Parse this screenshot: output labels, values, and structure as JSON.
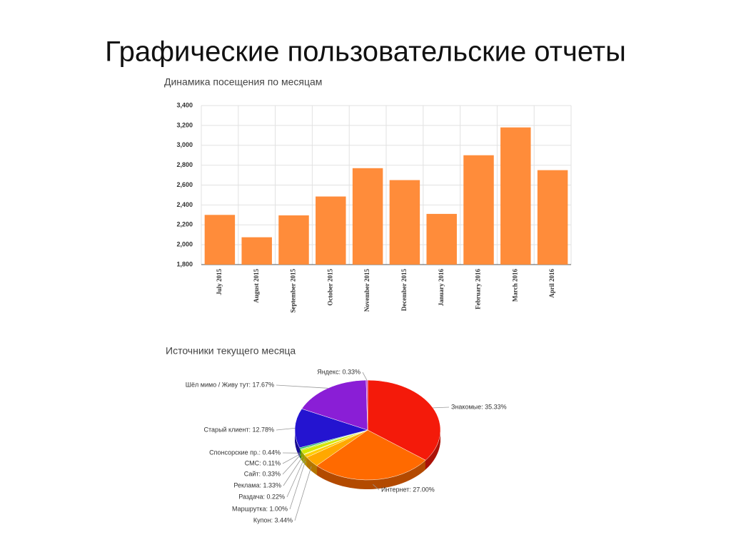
{
  "title": "Графические пользовательские отчеты",
  "chart_data": [
    {
      "type": "bar",
      "title": "Динамика посещения по месяцам",
      "categories": [
        "July 2015",
        "August 2015",
        "September 2015",
        "October 2015",
        "November 2015",
        "December 2015",
        "January 2016",
        "February 2016",
        "March 2016",
        "April 2016"
      ],
      "values": [
        2300,
        2075,
        2295,
        2485,
        2770,
        2650,
        2310,
        2900,
        3180,
        2750
      ],
      "color": "#ff8c3a",
      "ylim": [
        1800,
        3400
      ],
      "yticks": [
        {
          "value": 1800,
          "label": "1,800"
        },
        {
          "value": 2000,
          "label": "2,000"
        },
        {
          "value": 2200,
          "label": "2,200"
        },
        {
          "value": 2400,
          "label": "2,400"
        },
        {
          "value": 2600,
          "label": "2,600"
        },
        {
          "value": 2800,
          "label": "2,800"
        },
        {
          "value": 3000,
          "label": "3,000"
        },
        {
          "value": 3200,
          "label": "3,200"
        },
        {
          "value": 3400,
          "label": "3,400"
        }
      ],
      "grid": true
    },
    {
      "type": "pie",
      "title": "Источники текущего месяца",
      "values": [
        35.33,
        27.0,
        3.44,
        1.0,
        0.22,
        1.33,
        0.33,
        0.11,
        0.44,
        12.78,
        17.67,
        0.33
      ],
      "value_labels": [
        "Знакомые: 35.33%",
        "Интернет: 27.00%",
        "Купон: 3.44%",
        "Маршрутка: 1.00%",
        "Раздача: 0.22%",
        "Реклама: 1.33%",
        "Сайт: 0.33%",
        "СМС: 0.11%",
        "Спонсорские пр.: 0.44%",
        "Старый клиент: 12.78%",
        "Шёл мимо / Живу тут: 17.67%",
        "Яндекс: 0.33%"
      ],
      "colors": [
        "#f41a0a",
        "#ff6a00",
        "#ffa800",
        "#ffcc00",
        "#ffee00",
        "#d4e600",
        "#9ad400",
        "#55c400",
        "#00b24a",
        "#2414d0",
        "#8a1ed6",
        "#c23ac8"
      ]
    }
  ]
}
